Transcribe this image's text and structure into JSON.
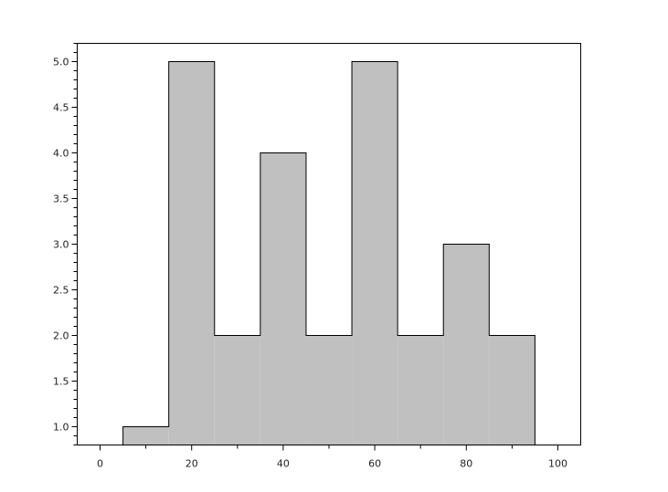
{
  "chart_data": {
    "type": "bar",
    "subtype": "histogram",
    "bin_edges": [
      5,
      15,
      25,
      35,
      45,
      55,
      65,
      75,
      85,
      95
    ],
    "values": [
      1,
      5,
      2,
      4,
      2,
      5,
      2,
      3,
      2
    ],
    "title": "",
    "xlabel": "",
    "ylabel": "",
    "xlim": [
      -5,
      105
    ],
    "ylim": [
      0.8,
      5.2
    ],
    "x_ticks": [
      0,
      20,
      40,
      60,
      80,
      100
    ],
    "x_tick_labels": [
      "0",
      "20",
      "40",
      "60",
      "80",
      "100"
    ],
    "y_ticks": [
      1.0,
      1.5,
      2.0,
      2.5,
      3.0,
      3.5,
      4.0,
      4.5,
      5.0
    ],
    "y_tick_labels": [
      "1.0",
      "1.5",
      "2.0",
      "2.5",
      "3.0",
      "3.5",
      "4.0",
      "4.5",
      "5.0"
    ],
    "grid": false,
    "fill_color": "#c0c0c0",
    "edge_color": "#000000"
  }
}
